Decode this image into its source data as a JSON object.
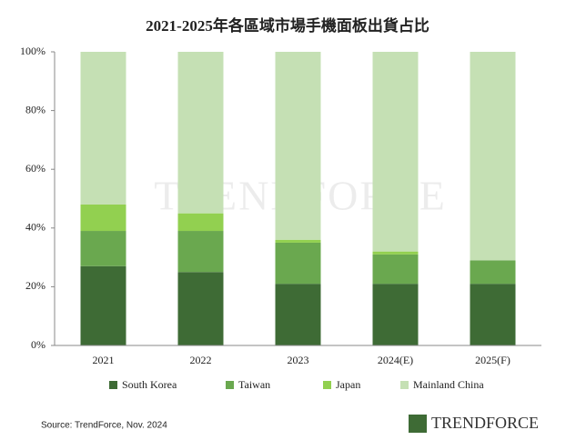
{
  "chart_data": {
    "type": "stacked_bar",
    "title": "2021-2025年各區域市場手機面板出貨占比",
    "categories": [
      "2021",
      "2022",
      "2023",
      "2024(E)",
      "2025(F)"
    ],
    "series": [
      {
        "name": "South Korea",
        "color": "#3e6b35",
        "values": [
          27,
          25,
          21,
          21,
          21
        ]
      },
      {
        "name": "Taiwan",
        "color": "#6aa84f",
        "values": [
          12,
          14,
          14,
          10,
          8
        ]
      },
      {
        "name": "Japan",
        "color": "#92d050",
        "values": [
          9,
          6,
          1,
          1,
          0
        ]
      },
      {
        "name": "Mainland China",
        "color": "#c5e0b4",
        "values": [
          52,
          55,
          64,
          68,
          71
        ]
      }
    ],
    "ylim": [
      0,
      100
    ],
    "yticks": [
      {
        "value": 0,
        "label": "0%"
      },
      {
        "value": 20,
        "label": "20%"
      },
      {
        "value": 40,
        "label": "40%"
      },
      {
        "value": 60,
        "label": "60%"
      },
      {
        "value": 80,
        "label": "80%"
      },
      {
        "value": 100,
        "label": "100%"
      }
    ],
    "legend": "bottom",
    "source": "Source: TrendForce, Nov. 2024",
    "logo": "TRENDFORCE"
  }
}
